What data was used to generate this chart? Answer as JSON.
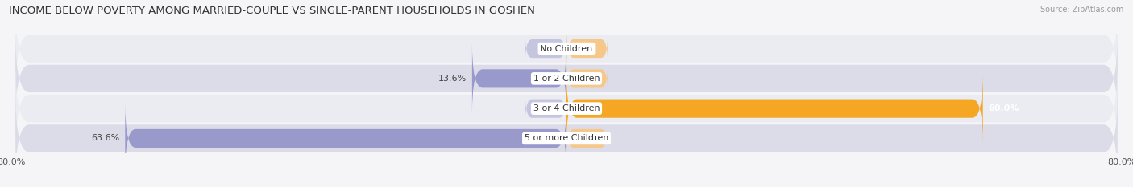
{
  "title": "INCOME BELOW POVERTY AMONG MARRIED-COUPLE VS SINGLE-PARENT HOUSEHOLDS IN GOSHEN",
  "source": "Source: ZipAtlas.com",
  "categories": [
    "No Children",
    "1 or 2 Children",
    "3 or 4 Children",
    "5 or more Children"
  ],
  "married_values": [
    0.0,
    13.6,
    0.0,
    63.6
  ],
  "single_values": [
    0.0,
    0.0,
    60.0,
    0.0
  ],
  "married_color": "#9999cc",
  "single_color": "#f5a623",
  "married_light": "#c5c5e0",
  "single_light": "#f5c88a",
  "row_bg_light": "#ebebf2",
  "row_bg_dark": "#dcdce8",
  "axis_min": -80.0,
  "axis_max": 80.0,
  "title_fontsize": 9.5,
  "label_fontsize": 8,
  "tick_fontsize": 8,
  "value_fontsize": 8
}
